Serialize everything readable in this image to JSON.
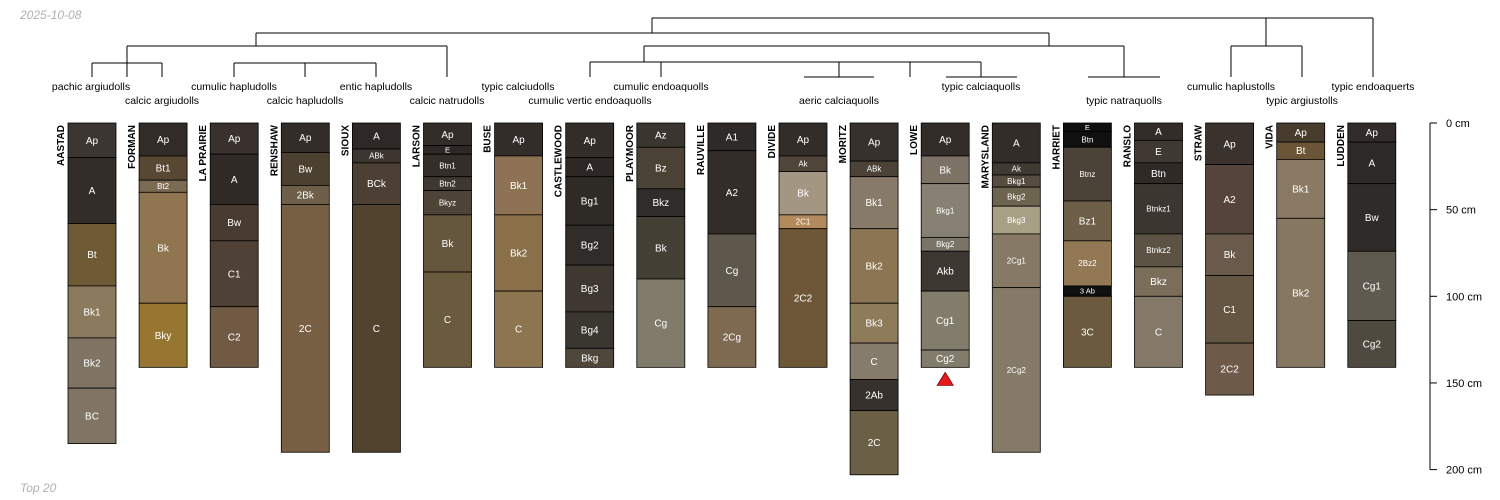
{
  "date_label": "2025-10-08",
  "footer_label": "Top 20",
  "chart_data": {
    "type": "soil-profile-sketch",
    "depth_axis": {
      "min_cm": 0,
      "max_cm": 200,
      "ticks": [
        {
          "value": 0,
          "label": "0 cm"
        },
        {
          "value": 50,
          "label": "50 cm"
        },
        {
          "value": 100,
          "label": "100 cm"
        },
        {
          "value": 150,
          "label": "150 cm"
        },
        {
          "value": 200,
          "label": "200 cm"
        }
      ]
    },
    "marker": {
      "profile": "LOWE",
      "shape": "triangle",
      "color": "#e8191c"
    },
    "taxa_labels": [
      {
        "text": "pachic argiudolls",
        "row": 0
      },
      {
        "text": "calcic argiudolls",
        "row": 1
      },
      {
        "text": "cumulic hapludolls",
        "row": 0
      },
      {
        "text": "calcic hapludolls",
        "row": 1
      },
      {
        "text": "entic hapludolls",
        "row": 0
      },
      {
        "text": "calcic natrudolls",
        "row": 1
      },
      {
        "text": "typic calciudolls",
        "row": 0
      },
      {
        "text": "cumulic vertic endoaquolls",
        "row": 1
      },
      {
        "text": "cumulic endoaquolls",
        "row": 0
      },
      {
        "text": "aeric calciaquolls",
        "row": 1
      },
      {
        "text": "typic calciaquolls",
        "row": 0
      },
      {
        "text": "typic natraquolls",
        "row": 1
      },
      {
        "text": "cumulic haplustolls",
        "row": 0
      },
      {
        "text": "typic argiustolls",
        "row": 1
      },
      {
        "text": "typic endoaquerts",
        "row": 0
      }
    ],
    "profiles": [
      {
        "name": "AASTAD",
        "horizons": [
          {
            "name": "Ap",
            "top": 0,
            "bottom": 20,
            "color": "#3c3632"
          },
          {
            "name": "A",
            "top": 20,
            "bottom": 58,
            "color": "#332d2a"
          },
          {
            "name": "Bt",
            "top": 58,
            "bottom": 94,
            "color": "#6f5a36"
          },
          {
            "name": "Bk1",
            "top": 94,
            "bottom": 124,
            "color": "#8c7a5e"
          },
          {
            "name": "Bk2",
            "top": 124,
            "bottom": 153,
            "color": "#7f7464"
          },
          {
            "name": "BC",
            "top": 153,
            "bottom": 185,
            "color": "#807565"
          }
        ]
      },
      {
        "name": "FORMAN",
        "horizons": [
          {
            "name": "Ap",
            "top": 0,
            "bottom": 19,
            "color": "#322c29"
          },
          {
            "name": "Bt1",
            "top": 19,
            "bottom": 33,
            "color": "#574733"
          },
          {
            "name": "Bt2",
            "top": 33,
            "bottom": 40,
            "color": "#7c6b53"
          },
          {
            "name": "Bk",
            "top": 40,
            "bottom": 104,
            "color": "#8f7650"
          },
          {
            "name": "Bky",
            "top": 104,
            "bottom": 141,
            "color": "#977631"
          }
        ]
      },
      {
        "name": "LA PRAIRIE",
        "horizons": [
          {
            "name": "Ap",
            "top": 0,
            "bottom": 18,
            "color": "#38312d"
          },
          {
            "name": "A",
            "top": 18,
            "bottom": 47,
            "color": "#302a27"
          },
          {
            "name": "Bw",
            "top": 47,
            "bottom": 68,
            "color": "#483b31"
          },
          {
            "name": "C1",
            "top": 68,
            "bottom": 106,
            "color": "#4f4136"
          },
          {
            "name": "C2",
            "top": 106,
            "bottom": 141,
            "color": "#715a43"
          }
        ]
      },
      {
        "name": "RENSHAW",
        "horizons": [
          {
            "name": "Ap",
            "top": 0,
            "bottom": 17,
            "color": "#332d2a"
          },
          {
            "name": "Bw",
            "top": 17,
            "bottom": 36,
            "color": "#4c4031"
          },
          {
            "name": "2Bk",
            "top": 36,
            "bottom": 47,
            "color": "#6e5f4b"
          },
          {
            "name": "2C",
            "top": 47,
            "bottom": 190,
            "color": "#765f43"
          }
        ]
      },
      {
        "name": "SIOUX",
        "horizons": [
          {
            "name": "A",
            "top": 0,
            "bottom": 15,
            "color": "#2e2926"
          },
          {
            "name": "ABk",
            "top": 15,
            "bottom": 23,
            "color": "#3d3630"
          },
          {
            "name": "BCk",
            "top": 23,
            "bottom": 47,
            "color": "#4c3f34"
          },
          {
            "name": "C",
            "top": 47,
            "bottom": 190,
            "color": "#52432f"
          }
        ]
      },
      {
        "name": "LARSON",
        "horizons": [
          {
            "name": "Ap",
            "top": 0,
            "bottom": 13,
            "color": "#332d2a"
          },
          {
            "name": "E",
            "top": 13,
            "bottom": 18,
            "color": "#2d2825"
          },
          {
            "name": "Btn1",
            "top": 18,
            "bottom": 31,
            "color": "#332e2a"
          },
          {
            "name": "Btn2",
            "top": 31,
            "bottom": 39,
            "color": "#3f3830"
          },
          {
            "name": "Bkyz",
            "top": 39,
            "bottom": 53,
            "color": "#4d4336"
          },
          {
            "name": "Bk",
            "top": 53,
            "bottom": 86,
            "color": "#65573e"
          },
          {
            "name": "C",
            "top": 86,
            "bottom": 141,
            "color": "#6a5a3e"
          }
        ]
      },
      {
        "name": "BUSE",
        "horizons": [
          {
            "name": "Ap",
            "top": 0,
            "bottom": 19,
            "color": "#332d2a"
          },
          {
            "name": "Bk1",
            "top": 19,
            "bottom": 53,
            "color": "#8d7354"
          },
          {
            "name": "Bk2",
            "top": 53,
            "bottom": 97,
            "color": "#8a7049"
          },
          {
            "name": "C",
            "top": 97,
            "bottom": 141,
            "color": "#8d764f"
          }
        ]
      },
      {
        "name": "CASTLEWOOD",
        "horizons": [
          {
            "name": "Ap",
            "top": 0,
            "bottom": 20,
            "color": "#332d2a"
          },
          {
            "name": "A",
            "top": 20,
            "bottom": 31,
            "color": "#2d2825"
          },
          {
            "name": "Bg1",
            "top": 31,
            "bottom": 59,
            "color": "#2e2a26"
          },
          {
            "name": "Bg2",
            "top": 59,
            "bottom": 82,
            "color": "#302c29"
          },
          {
            "name": "Bg3",
            "top": 82,
            "bottom": 109,
            "color": "#3e3831"
          },
          {
            "name": "Bg4",
            "top": 109,
            "bottom": 130,
            "color": "#3a3630"
          },
          {
            "name": "Bkg",
            "top": 130,
            "bottom": 141,
            "color": "#4f4739"
          }
        ]
      },
      {
        "name": "PLAYMOOR",
        "horizons": [
          {
            "name": "Az",
            "top": 0,
            "bottom": 14,
            "color": "#3b3530"
          },
          {
            "name": "Bz",
            "top": 14,
            "bottom": 38,
            "color": "#4b4236"
          },
          {
            "name": "Bkz",
            "top": 38,
            "bottom": 54,
            "color": "#302c29"
          },
          {
            "name": "Bk",
            "top": 54,
            "bottom": 90,
            "color": "#454035"
          },
          {
            "name": "Cg",
            "top": 90,
            "bottom": 141,
            "color": "#817b6c"
          }
        ]
      },
      {
        "name": "RAUVILLE",
        "horizons": [
          {
            "name": "A1",
            "top": 0,
            "bottom": 16,
            "color": "#2e2a27"
          },
          {
            "name": "A2",
            "top": 16,
            "bottom": 64,
            "color": "#332d2a"
          },
          {
            "name": "Cg",
            "top": 64,
            "bottom": 106,
            "color": "#5d574c"
          },
          {
            "name": "2Cg",
            "top": 106,
            "bottom": 141,
            "color": "#7d6a51"
          }
        ]
      },
      {
        "name": "DIVIDE",
        "horizons": [
          {
            "name": "Ap",
            "top": 0,
            "bottom": 19,
            "color": "#332d2a"
          },
          {
            "name": "Ak",
            "top": 19,
            "bottom": 28,
            "color": "#4f4538"
          },
          {
            "name": "Bk",
            "top": 28,
            "bottom": 53,
            "color": "#a39682"
          },
          {
            "name": "2C1",
            "top": 53,
            "bottom": 61,
            "color": "#b28a5c"
          },
          {
            "name": "2C2",
            "top": 61,
            "bottom": 141,
            "color": "#6e5737"
          }
        ]
      },
      {
        "name": "MORITZ",
        "horizons": [
          {
            "name": "Ap",
            "top": 0,
            "bottom": 22,
            "color": "#37312d"
          },
          {
            "name": "ABk",
            "top": 22,
            "bottom": 31,
            "color": "#4b4338"
          },
          {
            "name": "Bk1",
            "top": 31,
            "bottom": 61,
            "color": "#877a68"
          },
          {
            "name": "Bk2",
            "top": 61,
            "bottom": 104,
            "color": "#8b7552"
          },
          {
            "name": "Bk3",
            "top": 104,
            "bottom": 127,
            "color": "#8d7b5a"
          },
          {
            "name": "C",
            "top": 127,
            "bottom": 148,
            "color": "#857c6b"
          },
          {
            "name": "2Ab",
            "top": 148,
            "bottom": 166,
            "color": "#36312c"
          },
          {
            "name": "2C",
            "top": 166,
            "bottom": 203,
            "color": "#6b5f45"
          }
        ]
      },
      {
        "name": "LOWE",
        "horizons": [
          {
            "name": "Ap",
            "top": 0,
            "bottom": 19,
            "color": "#332d2a"
          },
          {
            "name": "Bk",
            "top": 19,
            "bottom": 35,
            "color": "#7c7266"
          },
          {
            "name": "Bkg1",
            "top": 35,
            "bottom": 66,
            "color": "#868172"
          },
          {
            "name": "Bkg2",
            "top": 66,
            "bottom": 74,
            "color": "#7a7466"
          },
          {
            "name": "Akb",
            "top": 74,
            "bottom": 97,
            "color": "#3c3731"
          },
          {
            "name": "Cg1",
            "top": 97,
            "bottom": 131,
            "color": "#827c6c"
          },
          {
            "name": "Cg2",
            "top": 131,
            "bottom": 141,
            "color": "#827c6c"
          }
        ]
      },
      {
        "name": "MARYSLAND",
        "horizons": [
          {
            "name": "A",
            "top": 0,
            "bottom": 23,
            "color": "#332d2a"
          },
          {
            "name": "Ak",
            "top": 23,
            "bottom": 30,
            "color": "#403a33"
          },
          {
            "name": "Bkg1",
            "top": 30,
            "bottom": 37,
            "color": "#564d40"
          },
          {
            "name": "Bkg2",
            "top": 37,
            "bottom": 48,
            "color": "#6d644f"
          },
          {
            "name": "Bkg3",
            "top": 48,
            "bottom": 64,
            "color": "#a8a085"
          },
          {
            "name": "2Cg1",
            "top": 64,
            "bottom": 95,
            "color": "#867a66"
          },
          {
            "name": "2Cg2",
            "top": 95,
            "bottom": 190,
            "color": "#857a67"
          }
        ]
      },
      {
        "name": "HARRIET",
        "horizons": [
          {
            "name": "E",
            "top": 0,
            "bottom": 5,
            "color": "#0f0f0f"
          },
          {
            "name": "Btn",
            "top": 5,
            "bottom": 14,
            "color": "#101010"
          },
          {
            "name": "Btnz",
            "top": 14,
            "bottom": 45,
            "color": "#4b4337"
          },
          {
            "name": "Bz1",
            "top": 45,
            "bottom": 68,
            "color": "#6e6048"
          },
          {
            "name": "2Bz2",
            "top": 68,
            "bottom": 94,
            "color": "#927855"
          },
          {
            "name": "3 Ab",
            "top": 94,
            "bottom": 100,
            "color": "#101010"
          },
          {
            "name": "3C",
            "top": 100,
            "bottom": 141,
            "color": "#6c5a3f"
          }
        ]
      },
      {
        "name": "RANSLO",
        "horizons": [
          {
            "name": "A",
            "top": 0,
            "bottom": 10,
            "color": "#332d2a"
          },
          {
            "name": "E",
            "top": 10,
            "bottom": 23,
            "color": "#3f3932"
          },
          {
            "name": "Btn",
            "top": 23,
            "bottom": 35,
            "color": "#2f2a26"
          },
          {
            "name": "Btnkz1",
            "top": 35,
            "bottom": 64,
            "color": "#3c3631"
          },
          {
            "name": "Btnkz2",
            "top": 64,
            "bottom": 83,
            "color": "#5c5345"
          },
          {
            "name": "Bkz",
            "top": 83,
            "bottom": 100,
            "color": "#7a6e5b"
          },
          {
            "name": "C",
            "top": 100,
            "bottom": 141,
            "color": "#847868"
          }
        ]
      },
      {
        "name": "STRAW",
        "horizons": [
          {
            "name": "Ap",
            "top": 0,
            "bottom": 24,
            "color": "#3a332d"
          },
          {
            "name": "A2",
            "top": 24,
            "bottom": 64,
            "color": "#54443a"
          },
          {
            "name": "Bk",
            "top": 64,
            "bottom": 88,
            "color": "#6a5a4b"
          },
          {
            "name": "C1",
            "top": 88,
            "bottom": 127,
            "color": "#655644"
          },
          {
            "name": "2C2",
            "top": 127,
            "bottom": 157,
            "color": "#6e5a48"
          }
        ]
      },
      {
        "name": "VIDA",
        "horizons": [
          {
            "name": "Ap",
            "top": 0,
            "bottom": 11,
            "color": "#483c2e"
          },
          {
            "name": "Bt",
            "top": 11,
            "bottom": 21,
            "color": "#6b5536"
          },
          {
            "name": "Bk1",
            "top": 21,
            "bottom": 55,
            "color": "#8a7a63"
          },
          {
            "name": "Bk2",
            "top": 55,
            "bottom": 141,
            "color": "#867760"
          }
        ]
      },
      {
        "name": "LUDDEN",
        "horizons": [
          {
            "name": "Ap",
            "top": 0,
            "bottom": 11,
            "color": "#312c29"
          },
          {
            "name": "A",
            "top": 11,
            "bottom": 35,
            "color": "#2d2926"
          },
          {
            "name": "Bw",
            "top": 35,
            "bottom": 74,
            "color": "#2f2b28"
          },
          {
            "name": "Cg1",
            "top": 74,
            "bottom": 114,
            "color": "#5e5a4f"
          },
          {
            "name": "Cg2",
            "top": 114,
            "bottom": 141,
            "color": "#4e4a40"
          }
        ]
      }
    ]
  }
}
